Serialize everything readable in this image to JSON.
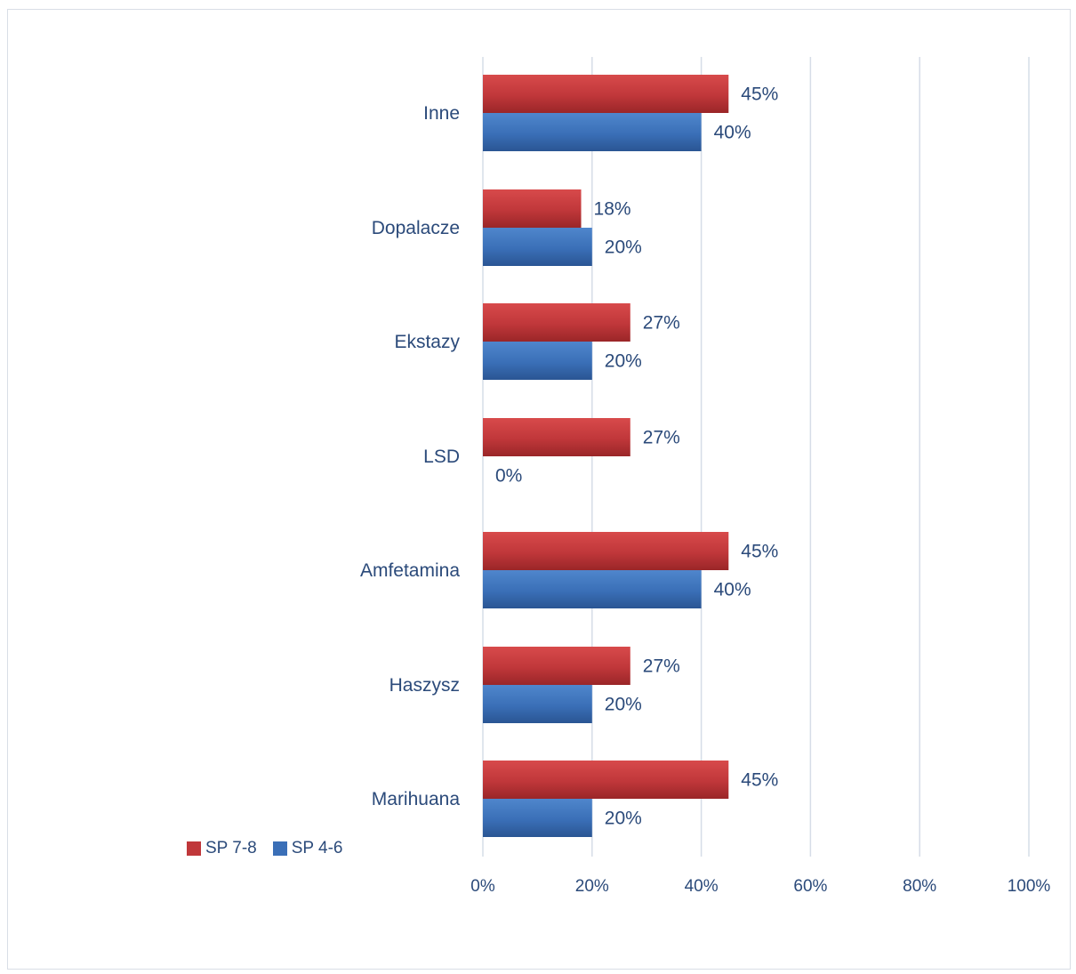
{
  "chart_data": {
    "type": "bar",
    "orientation": "horizontal",
    "categories": [
      "Marihuana",
      "Haszysz",
      "Amfetamina",
      "LSD",
      "Ekstazy",
      "Dopalacze",
      "Inne"
    ],
    "series": [
      {
        "name": "SP 7-8",
        "color": "#c0373a",
        "values": [
          45,
          27,
          45,
          27,
          27,
          18,
          45
        ],
        "labels": [
          "45%",
          "27%",
          "45%",
          "27%",
          "27%",
          "18%",
          "45%"
        ]
      },
      {
        "name": "SP 4-6",
        "color": "#3a6fb7",
        "values": [
          20,
          20,
          40,
          0,
          20,
          20,
          40
        ],
        "labels": [
          "20%",
          "20%",
          "40%",
          "0%",
          "20%",
          "20%",
          "40%"
        ]
      }
    ],
    "xlim": [
      0,
      100
    ],
    "xticks": [
      0,
      20,
      40,
      60,
      80,
      100
    ],
    "xtick_labels": [
      "0%",
      "20%",
      "40%",
      "60%",
      "80%",
      "100%"
    ],
    "grid": "vertical",
    "legend": "bottom-left"
  }
}
